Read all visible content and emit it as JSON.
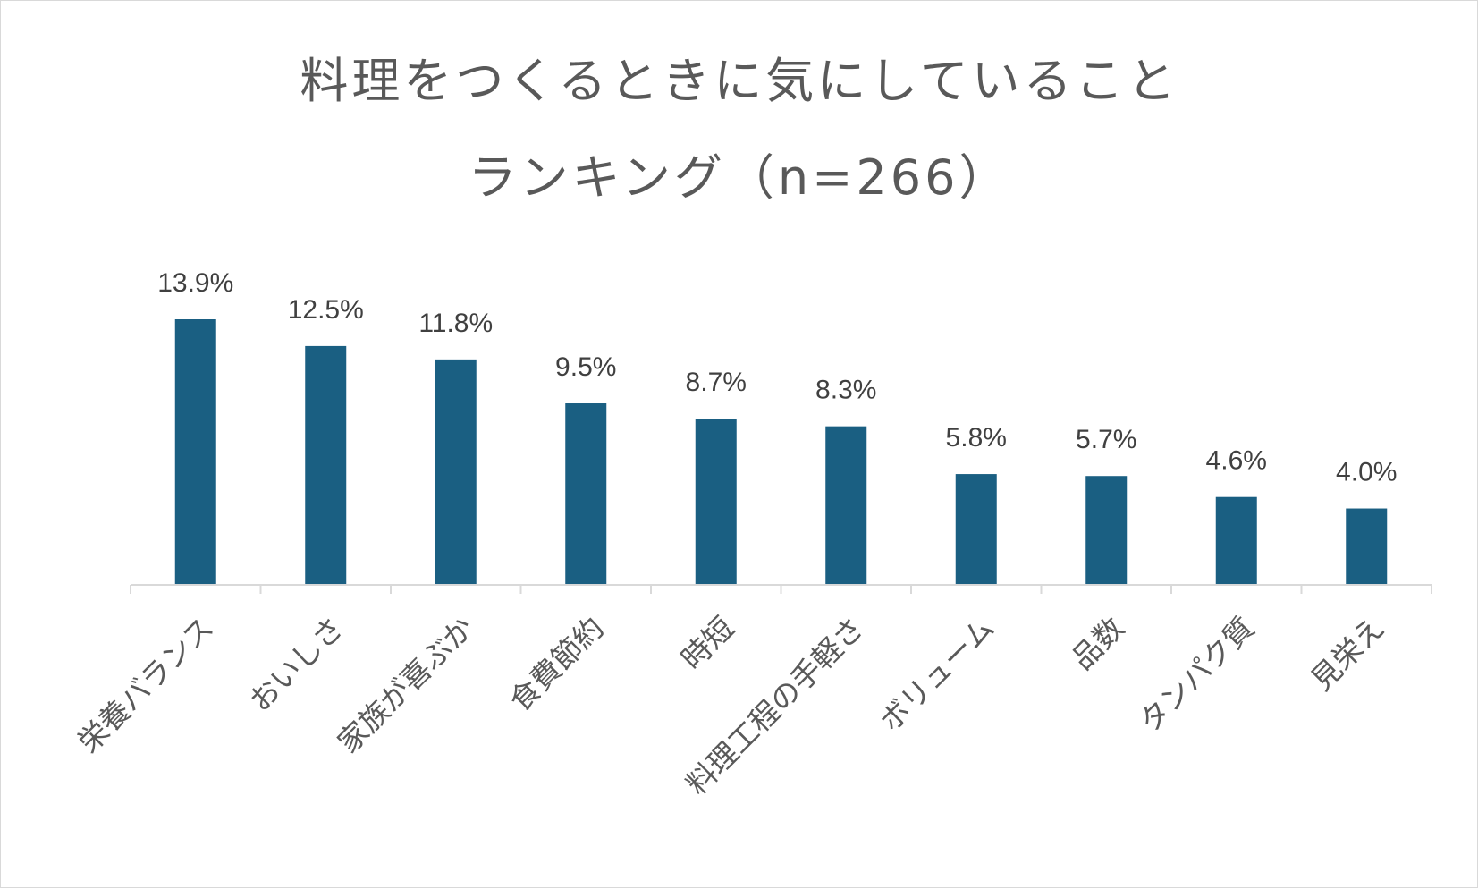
{
  "chart_data": {
    "type": "bar",
    "title_line1": "料理をつくるときに気にしていること",
    "title_line2": "ランキング（n=266）",
    "xlabel": "",
    "ylabel": "",
    "ylim": [
      0,
      15
    ],
    "grid": false,
    "legend": "none",
    "bar_color": "#1a5f82",
    "axis_color": "#d9d9d9",
    "categories": [
      "栄養バランス",
      "おいしさ",
      "家族が喜ぶか",
      "食費節約",
      "時短",
      "料理工程の手軽さ",
      "ボリューム",
      "品数",
      "タンパク質",
      "見栄え"
    ],
    "values": [
      13.9,
      12.5,
      11.8,
      9.5,
      8.7,
      8.3,
      5.8,
      5.7,
      4.6,
      4.0
    ],
    "labels": [
      "13.9%",
      "12.5%",
      "11.8%",
      "9.5%",
      "8.7%",
      "8.3%",
      "5.8%",
      "5.7%",
      "4.6%",
      "4.0%"
    ]
  }
}
